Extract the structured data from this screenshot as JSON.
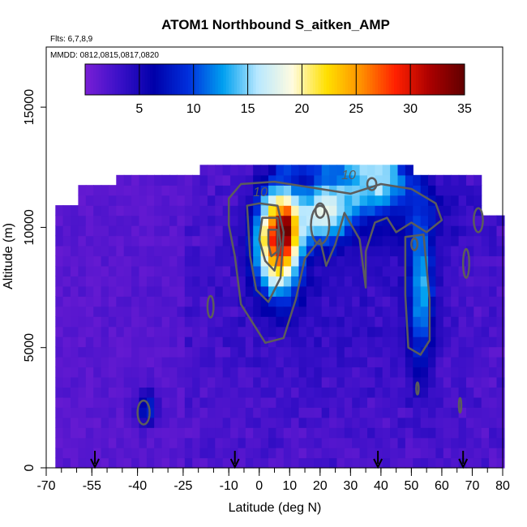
{
  "chart_data": {
    "type": "heatmap",
    "title": "ATOM1 Northbound S_aitken_AMP",
    "annotations": [
      "Flts: 6,7,8,9",
      "MMDD: 0812,0815,0817,0820"
    ],
    "xlabel": "Latitude (deg N)",
    "ylabel": "Altitude (m)",
    "xlim": [
      -70,
      80
    ],
    "ylim": [
      0,
      17500
    ],
    "x_ticks": [
      -70,
      -55,
      -40,
      -25,
      -10,
      0,
      10,
      20,
      30,
      40,
      50,
      60,
      70,
      80
    ],
    "x_tick_labels": [
      "-70",
      "-55",
      "-40",
      "-25",
      "-10",
      "0",
      "10",
      "20",
      "30",
      "40",
      "50",
      "60",
      "70",
      "80"
    ],
    "y_ticks": [
      0,
      5000,
      10000,
      15000
    ],
    "y_tick_labels": [
      "0",
      "5000",
      "10000",
      "15000"
    ],
    "colorbar": {
      "min": 0,
      "max": 35,
      "ticks": [
        5,
        10,
        15,
        20,
        25,
        30,
        35
      ],
      "tick_labels": [
        "5",
        "10",
        "15",
        "20",
        "25",
        "30",
        "35"
      ],
      "colors": [
        "#7a1fd6",
        "#3a10c8",
        "#0000aa",
        "#0030dd",
        "#00a0f0",
        "#b8e8ff",
        "#fffbe0",
        "#ffe000",
        "#ff9000",
        "#ff2000",
        "#aa0000",
        "#600000"
      ]
    },
    "contour_labels": [
      "10",
      "10"
    ],
    "flight_arrows_lat": [
      -54,
      -8,
      39,
      67
    ],
    "grid": false,
    "legend_position": "top (colorbar)",
    "field": {
      "lat_range": [
        -67,
        80
      ],
      "alt_range": [
        0,
        12500
      ],
      "features": [
        {
          "lat": 5,
          "alt": 9500,
          "value": 30
        },
        {
          "lat": 20,
          "alt": 10300,
          "value": 17
        },
        {
          "lat": 52,
          "alt": 7000,
          "value": 12
        },
        {
          "lat": -38,
          "alt": 2300,
          "value": 9
        },
        {
          "lat": 37,
          "alt": 11500,
          "value": 12
        }
      ]
    }
  }
}
